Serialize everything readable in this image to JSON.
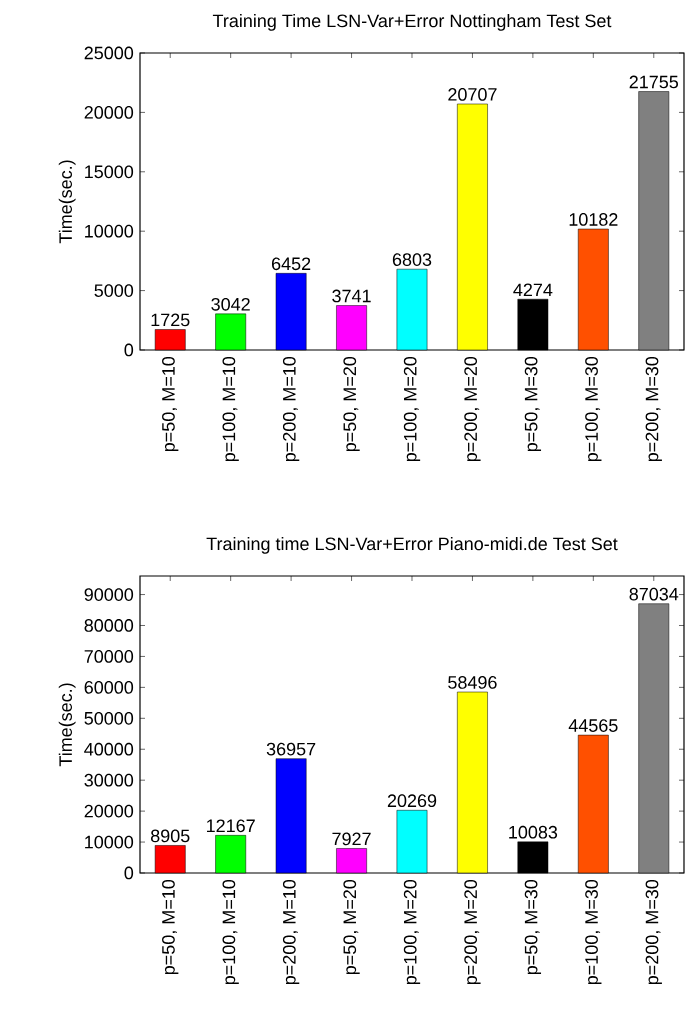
{
  "chart_data": [
    {
      "type": "bar",
      "title": "Training Time LSN-Var+Error Nottingham Test Set",
      "ylabel": "Time(sec.)",
      "categories": [
        "p=50, M=10",
        "p=100, M=10",
        "p=200, M=10",
        "p=50, M=20",
        "p=100, M=20",
        "p=200, M=20",
        "p=50, M=30",
        "p=100, M=30",
        "p=200, M=30"
      ],
      "values": [
        1725,
        3042,
        6452,
        3741,
        6803,
        20707,
        4274,
        10182,
        21755
      ],
      "colors": [
        "#ff0000",
        "#00ff00",
        "#0000ff",
        "#ff00ff",
        "#00ffff",
        "#ffff00",
        "#000000",
        "#ff5000",
        "#808080"
      ],
      "ylim": [
        0,
        25000
      ],
      "yticks": [
        0,
        5000,
        10000,
        15000,
        20000,
        25000
      ],
      "data_labels": true
    },
    {
      "type": "bar",
      "title": "Training time LSN-Var+Error Piano-midi.de Test Set",
      "ylabel": "Time(sec.)",
      "categories": [
        "p=50, M=10",
        "p=100, M=10",
        "p=200, M=10",
        "p=50, M=20",
        "p=100, M=20",
        "p=200, M=20",
        "p=50, M=30",
        "p=100, M=30",
        "p=200, M=30"
      ],
      "values": [
        8905,
        12167,
        36957,
        7927,
        20269,
        58496,
        10083,
        44565,
        87034
      ],
      "colors": [
        "#ff0000",
        "#00ff00",
        "#0000ff",
        "#ff00ff",
        "#00ffff",
        "#ffff00",
        "#000000",
        "#ff5000",
        "#808080"
      ],
      "ylim": [
        0,
        96000
      ],
      "yticks": [
        0,
        10000,
        20000,
        30000,
        40000,
        50000,
        60000,
        70000,
        80000,
        90000
      ],
      "data_labels": true
    }
  ]
}
